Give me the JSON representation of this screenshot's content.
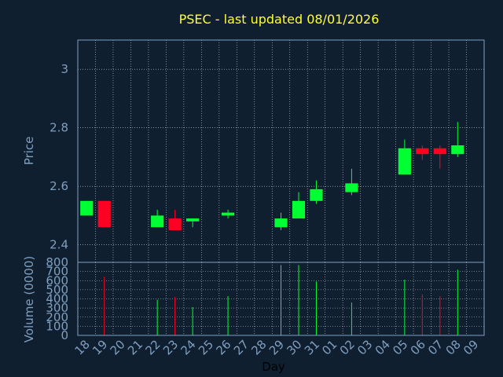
{
  "chart_data": {
    "type": "candlestick",
    "title": "PSEC - last updated 08/01/2026",
    "xlabel": "Day",
    "days": [
      "18",
      "19",
      "20",
      "21",
      "22",
      "23",
      "24",
      "25",
      "26",
      "27",
      "28",
      "29",
      "30",
      "31",
      "01",
      "02",
      "03",
      "04",
      "05",
      "06",
      "07",
      "08",
      "09"
    ],
    "price": {
      "ylabel": "Price",
      "ylim": [
        2.34,
        3.1
      ],
      "yticks": [
        "2.4",
        "2.6",
        "2.8",
        "3"
      ],
      "candles": [
        {
          "day": "18",
          "open": 2.5,
          "high": 2.55,
          "low": 2.5,
          "close": 2.55
        },
        {
          "day": "19",
          "open": 2.55,
          "high": 2.55,
          "low": 2.46,
          "close": 2.46
        },
        {
          "day": "22",
          "open": 2.46,
          "high": 2.52,
          "low": 2.46,
          "close": 2.5
        },
        {
          "day": "23",
          "open": 2.49,
          "high": 2.52,
          "low": 2.45,
          "close": 2.45
        },
        {
          "day": "24",
          "open": 2.48,
          "high": 2.49,
          "low": 2.46,
          "close": 2.49
        },
        {
          "day": "26",
          "open": 2.5,
          "high": 2.52,
          "low": 2.49,
          "close": 2.51
        },
        {
          "day": "29",
          "open": 2.46,
          "high": 2.51,
          "low": 2.45,
          "close": 2.49
        },
        {
          "day": "30",
          "open": 2.49,
          "high": 2.58,
          "low": 2.49,
          "close": 2.55
        },
        {
          "day": "31",
          "open": 2.55,
          "high": 2.62,
          "low": 2.54,
          "close": 2.59
        },
        {
          "day": "02",
          "open": 2.58,
          "high": 2.66,
          "low": 2.57,
          "close": 2.61
        },
        {
          "day": "05",
          "open": 2.64,
          "high": 2.76,
          "low": 2.64,
          "close": 2.73
        },
        {
          "day": "06",
          "open": 2.73,
          "high": 2.74,
          "low": 2.69,
          "close": 2.71
        },
        {
          "day": "07",
          "open": 2.73,
          "high": 2.74,
          "low": 2.66,
          "close": 2.71
        },
        {
          "day": "08",
          "open": 2.71,
          "high": 2.82,
          "low": 2.7,
          "close": 2.74
        }
      ]
    },
    "volume": {
      "ylabel": "Volume (0000)",
      "ylim": [
        0,
        800
      ],
      "yticks": [
        "0",
        "100",
        "200",
        "300",
        "400",
        "500",
        "600",
        "700",
        "800"
      ],
      "bars": [
        {
          "day": "19",
          "value": 640,
          "up": false
        },
        {
          "day": "22",
          "value": 390,
          "up": true
        },
        {
          "day": "23",
          "value": 420,
          "up": false
        },
        {
          "day": "24",
          "value": 310,
          "up": true
        },
        {
          "day": "26",
          "value": 430,
          "up": true
        },
        {
          "day": "29",
          "value": 770,
          "up": true
        },
        {
          "day": "30",
          "value": 770,
          "up": true
        },
        {
          "day": "31",
          "value": 590,
          "up": true
        },
        {
          "day": "02",
          "value": 360,
          "up": true
        },
        {
          "day": "05",
          "value": 610,
          "up": true
        },
        {
          "day": "06",
          "value": 450,
          "up": false
        },
        {
          "day": "07",
          "value": 430,
          "up": false
        },
        {
          "day": "08",
          "value": 720,
          "up": true
        }
      ]
    },
    "colors": {
      "background": "#0f1f30",
      "up": "#00ff33",
      "down": "#ff0022",
      "title": "#ffff33",
      "axis": "#7f9fbf",
      "grid": "#ffffff"
    },
    "grid": true
  }
}
